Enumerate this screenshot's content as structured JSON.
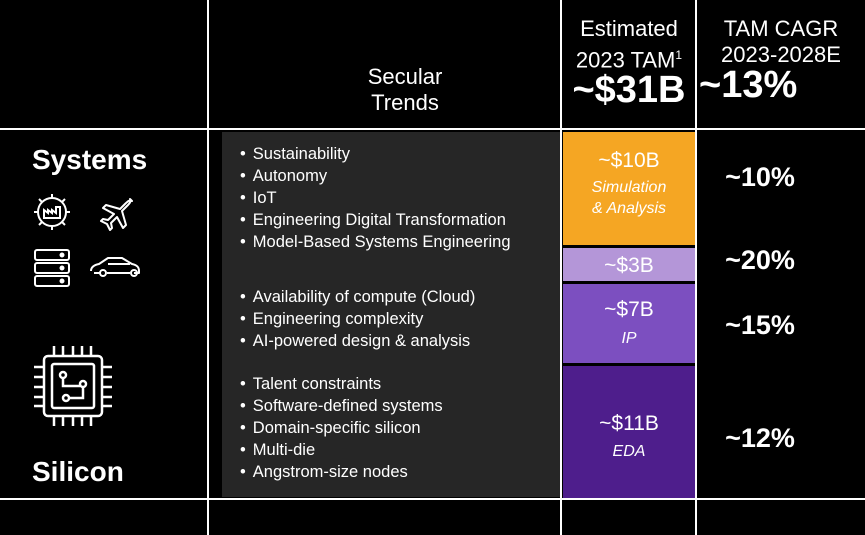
{
  "header": {
    "secular_line1": "Secular",
    "secular_line2": "Trends",
    "tam_line1": "Estimated",
    "tam_line2": "2023 TAM",
    "tam_footnote": "1",
    "tam_total": "~$31B",
    "cagr_line1": "TAM CAGR",
    "cagr_line2": "2023-2028E",
    "cagr_total": "~13%"
  },
  "side": {
    "systems_label": "Systems",
    "silicon_label": "Silicon",
    "icons": [
      "gear-factory-icon",
      "airplane-icon",
      "server-stack-icon",
      "car-icon",
      "chip-icon"
    ]
  },
  "trends": {
    "group1": [
      "Sustainability",
      "Autonomy",
      "IoT",
      "Engineering Digital Transformation",
      "Model-Based Systems Engineering"
    ],
    "group2": [
      "Availability of compute (Cloud)",
      "Engineering complexity",
      "AI-powered design & analysis"
    ],
    "group3": [
      "Talent constraints",
      "Software-defined systems",
      "Domain-specific silicon",
      "Multi-die",
      "Angstrom-size nodes"
    ]
  },
  "segments": [
    {
      "amount": "~$10B",
      "label_line1": "Simulation",
      "label_line2": "& Analysis",
      "color": "#F5A623"
    },
    {
      "amount": "~$3B",
      "label_line1": "",
      "label_line2": "",
      "color": "#B496D8"
    },
    {
      "amount": "~$7B",
      "label_line1": "IP",
      "label_line2": "",
      "color": "#7C4FC0"
    },
    {
      "amount": "~$11B",
      "label_line1": "EDA",
      "label_line2": "",
      "color": "#4E1E8C"
    }
  ],
  "cagr": [
    "~10%",
    "~20%",
    "~15%",
    "~12%"
  ]
}
